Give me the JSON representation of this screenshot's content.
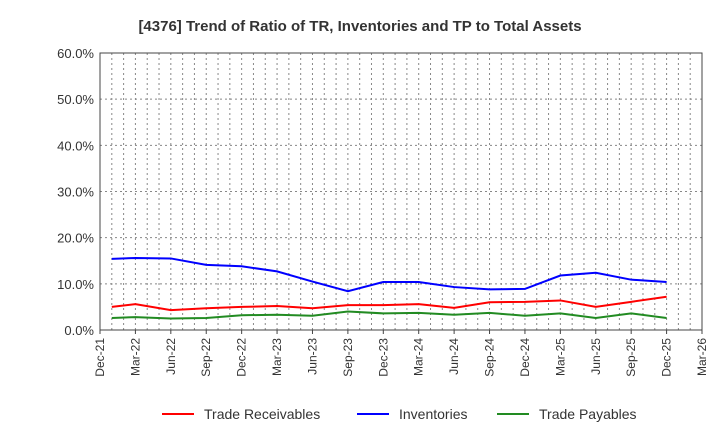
{
  "chart_data": {
    "type": "line",
    "title": "[4376]  Trend of Ratio of TR, Inventories and TP to Total Assets",
    "xlabel": "",
    "ylabel": "",
    "ylim": [
      0,
      60
    ],
    "yticks": [
      "0.0%",
      "10.0%",
      "20.0%",
      "30.0%",
      "40.0%",
      "50.0%",
      "60.0%"
    ],
    "xticks": [
      "Dec-21",
      "Mar-22",
      "Jun-22",
      "Sep-22",
      "Dec-22",
      "Mar-23",
      "Jun-23",
      "Sep-23",
      "Dec-23",
      "Mar-24",
      "Jun-24",
      "Sep-24",
      "Dec-24",
      "Mar-25",
      "Jun-25",
      "Sep-25",
      "Dec-25",
      "Mar-26"
    ],
    "x": [
      "Jan-22",
      "Mar-22",
      "Jun-22",
      "Sep-22",
      "Dec-22",
      "Mar-23",
      "Jun-23",
      "Sep-23",
      "Dec-23",
      "Mar-24",
      "Jun-24",
      "Sep-24",
      "Dec-24",
      "Mar-25",
      "Jun-25",
      "Sep-25",
      "Dec-25"
    ],
    "x_month_offsets": [
      1,
      3,
      6,
      9,
      12,
      15,
      18,
      21,
      24,
      27,
      30,
      33,
      36,
      39,
      42,
      45,
      48
    ],
    "grid": true,
    "legend_position": "bottom",
    "series": [
      {
        "name": "Trade Receivables",
        "color": "#ff0000",
        "values": [
          5.0,
          5.6,
          4.3,
          4.7,
          5.0,
          5.2,
          4.7,
          5.4,
          5.4,
          5.6,
          4.8,
          6.0,
          6.1,
          6.4,
          5.0,
          6.1,
          7.2
        ]
      },
      {
        "name": "Inventories",
        "color": "#0000ff",
        "values": [
          15.4,
          15.6,
          15.5,
          14.1,
          13.8,
          12.7,
          10.5,
          8.4,
          10.4,
          10.4,
          9.3,
          8.8,
          8.9,
          11.8,
          12.4,
          10.9,
          10.4
        ]
      },
      {
        "name": "Trade Payables",
        "color": "#228b22",
        "values": [
          2.6,
          2.8,
          2.5,
          2.6,
          3.2,
          3.3,
          3.1,
          4.0,
          3.6,
          3.7,
          3.3,
          3.7,
          3.1,
          3.6,
          2.6,
          3.6,
          2.6
        ]
      }
    ]
  }
}
